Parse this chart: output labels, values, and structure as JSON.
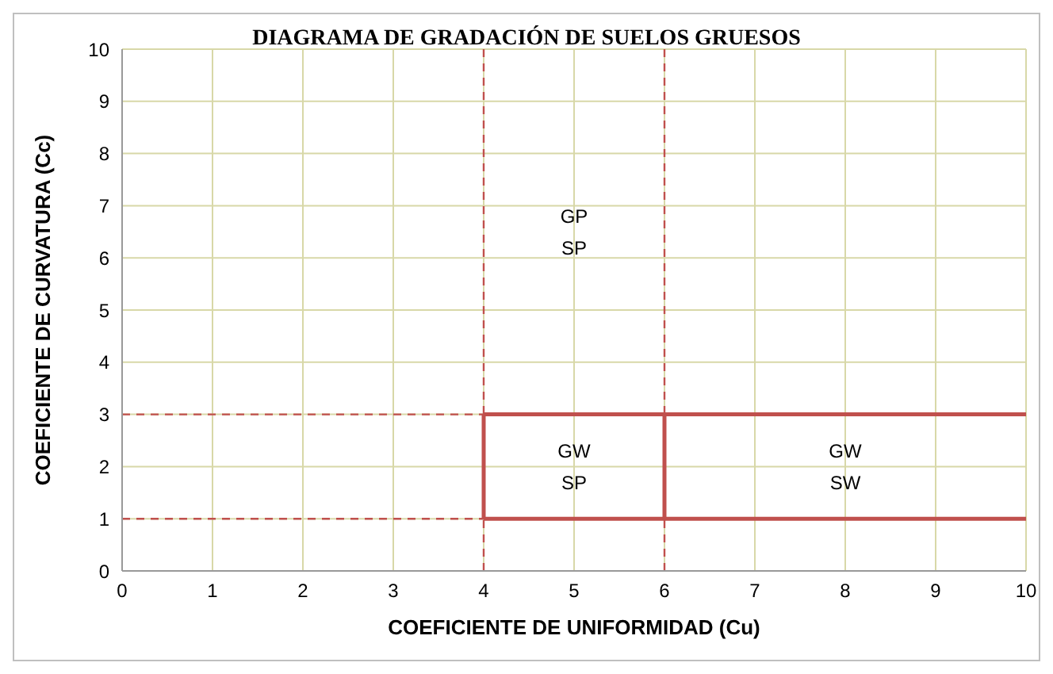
{
  "chart_data": {
    "type": "line",
    "title": "DIAGRAMA DE GRADACIÓN DE SUELOS GRUESOS",
    "xlabel": "COEFICIENTE DE UNIFORMIDAD (Cu)",
    "ylabel": "COEFICIENTE DE CURVATURA (Cc)",
    "xlim": [
      0,
      10
    ],
    "xticks": [
      0,
      1,
      2,
      3,
      4,
      5,
      6,
      7,
      8,
      9,
      10
    ],
    "ylim": [
      0,
      10
    ],
    "yticks": [
      0,
      1,
      2,
      3,
      4,
      5,
      6,
      7,
      8,
      9,
      10
    ],
    "grid": true,
    "marker": "none",
    "series": [
      {
        "color": "#c0504d",
        "x": [
          0,
          4
        ],
        "values": [
          3,
          3
        ],
        "line_style": "dashed"
      },
      {
        "color": "#c0504d",
        "x": [
          0,
          4
        ],
        "values": [
          1,
          1
        ],
        "line_style": "dashed"
      },
      {
        "color": "#c0504d",
        "x": [
          4,
          10
        ],
        "values": [
          3,
          3
        ],
        "line_style": "solid"
      },
      {
        "color": "#c0504d",
        "x": [
          4,
          10
        ],
        "values": [
          1,
          1
        ],
        "line_style": "solid"
      },
      {
        "color": "#c0504d",
        "x": [
          4,
          4
        ],
        "values": [
          1,
          3
        ],
        "line_style": "solid"
      },
      {
        "color": "#c0504d",
        "x": [
          6,
          6
        ],
        "values": [
          1,
          3
        ],
        "line_style": "solid"
      }
    ],
    "ref_lines": [
      {
        "axis": "x",
        "value": 4,
        "color": "#c0504d",
        "line_style": "dashed"
      },
      {
        "axis": "x",
        "value": 6,
        "color": "#c0504d",
        "line_style": "dashed"
      }
    ],
    "annotations": [
      "GP",
      "SP",
      "GW",
      "SP",
      "GW",
      "SW"
    ]
  }
}
